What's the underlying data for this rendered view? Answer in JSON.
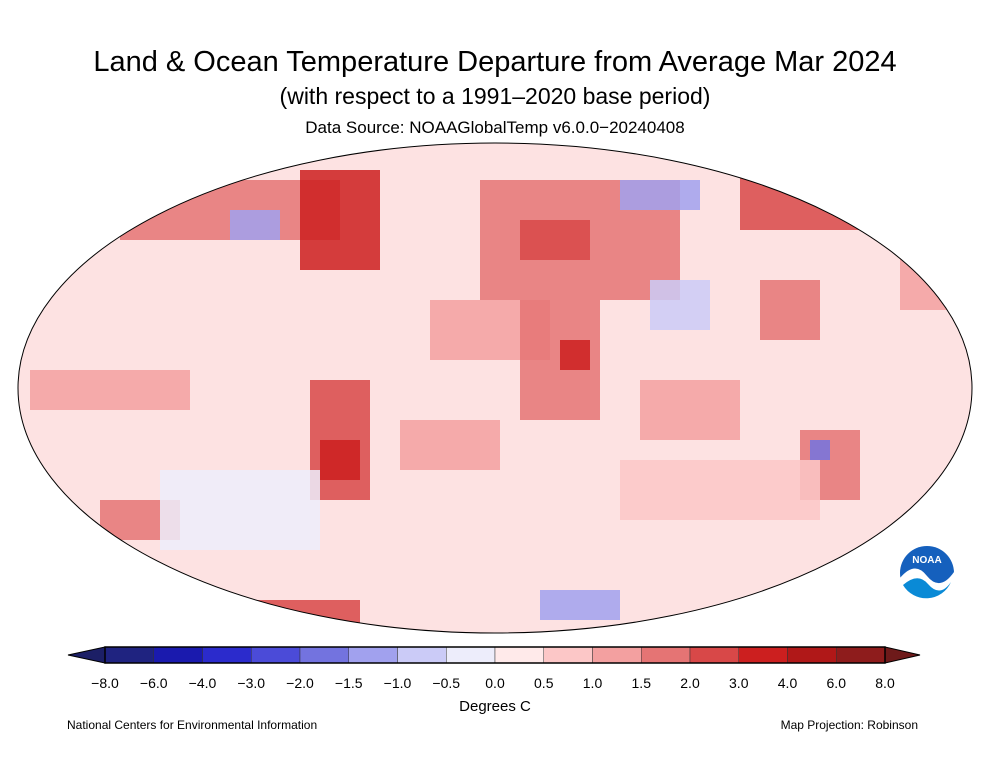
{
  "title": "Land & Ocean Temperature Departure from Average Mar 2024",
  "subtitle": "(with respect to a 1991–2020 base period)",
  "source": "Data Source: NOAAGlobalTemp v6.0.0−20240408",
  "legend": {
    "units": "Degrees C",
    "ticks": [
      "−8.0",
      "−6.0",
      "−4.0",
      "−3.0",
      "−2.0",
      "−1.5",
      "−1.0",
      "−0.5",
      "0.0",
      "0.5",
      "1.0",
      "1.5",
      "2.0",
      "3.0",
      "4.0",
      "6.0",
      "8.0"
    ],
    "colors": [
      "#1f2380",
      "#1a1aae",
      "#2b2bcc",
      "#4b4bd8",
      "#7373df",
      "#a1a1ee",
      "#cbcbf7",
      "#ededfb",
      "#ffeaea",
      "#fcc7c7",
      "#f3a0a0",
      "#e57474",
      "#d84848",
      "#cc1f1f",
      "#b01818",
      "#8e1c1c"
    ],
    "under_color": "#1c1f66",
    "over_color": "#6e1a1a"
  },
  "logo": {
    "text": "NOAA"
  },
  "footer": {
    "left": "National Centers for Environmental Information",
    "right": "Map Projection: Robinson"
  }
}
